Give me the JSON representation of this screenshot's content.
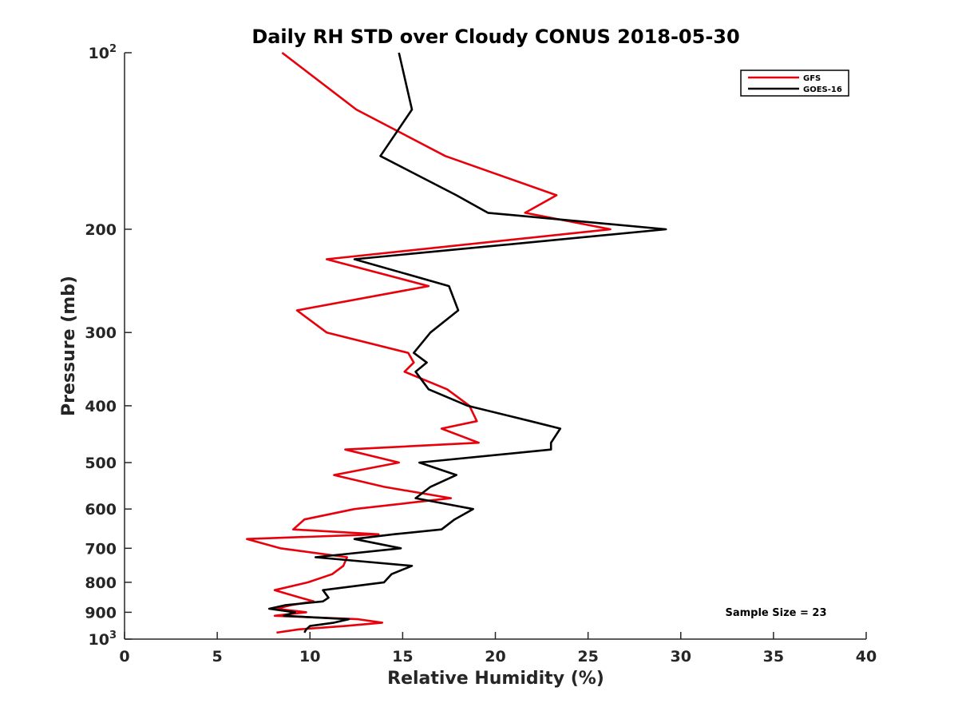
{
  "chart_data": {
    "type": "line",
    "title": "Daily RH STD over Cloudy CONUS 2018-05-30",
    "xlabel": "Relative Humidity (%)",
    "ylabel": "Pressure (mb)",
    "xlim": [
      0,
      40
    ],
    "ylim": [
      100,
      1000
    ],
    "yscale": "log",
    "y_reversed": true,
    "xticks": [
      0,
      5,
      10,
      15,
      20,
      25,
      30,
      35,
      40
    ],
    "xtick_labels": [
      "0",
      "5",
      "10",
      "15",
      "20",
      "25",
      "30",
      "35",
      "40"
    ],
    "yticks": [
      {
        "value": 100,
        "label": "10",
        "sup": "2"
      },
      {
        "value": 200,
        "label": "200",
        "sup": ""
      },
      {
        "value": 300,
        "label": "300",
        "sup": ""
      },
      {
        "value": 400,
        "label": "400",
        "sup": ""
      },
      {
        "value": 500,
        "label": "500",
        "sup": ""
      },
      {
        "value": 600,
        "label": "600",
        "sup": ""
      },
      {
        "value": 700,
        "label": "700",
        "sup": ""
      },
      {
        "value": 800,
        "label": "800",
        "sup": ""
      },
      {
        "value": 900,
        "label": "900",
        "sup": ""
      },
      {
        "value": 1000,
        "label": "10",
        "sup": "3"
      }
    ],
    "grid": false,
    "legend_position": "top-right",
    "annotation": "Sample Size = 23",
    "series": [
      {
        "name": "GFS",
        "color": "#e8000b",
        "points": [
          [
            8.5,
            100
          ],
          [
            12.5,
            125
          ],
          [
            17.3,
            150
          ],
          [
            23.3,
            175
          ],
          [
            21.6,
            187.5
          ],
          [
            26.2,
            200
          ],
          [
            10.9,
            225
          ],
          [
            16.4,
            250
          ],
          [
            9.3,
            275
          ],
          [
            10.9,
            300
          ],
          [
            15.3,
            325
          ],
          [
            15.6,
            337.5
          ],
          [
            15.1,
            350
          ],
          [
            17.4,
            375
          ],
          [
            18.6,
            400
          ],
          [
            19.0,
            425
          ],
          [
            17.1,
            437.5
          ],
          [
            19.1,
            462.5
          ],
          [
            11.9,
            475
          ],
          [
            14.8,
            500
          ],
          [
            11.3,
            525
          ],
          [
            14.0,
            550
          ],
          [
            17.6,
            575
          ],
          [
            12.4,
            600
          ],
          [
            9.7,
            625
          ],
          [
            9.1,
            650
          ],
          [
            13.7,
            662.5
          ],
          [
            6.6,
            675
          ],
          [
            8.4,
            700
          ],
          [
            12.0,
            725
          ],
          [
            11.8,
            750
          ],
          [
            11.2,
            775
          ],
          [
            9.9,
            800
          ],
          [
            8.1,
            825
          ],
          [
            9.5,
            850
          ],
          [
            10.2,
            862.5
          ],
          [
            9.0,
            875
          ],
          [
            8.2,
            887.5
          ],
          [
            9.8,
            900
          ],
          [
            8.1,
            912.5
          ],
          [
            12.6,
            925
          ],
          [
            13.9,
            937.5
          ],
          [
            11.9,
            950
          ],
          [
            9.4,
            962.5
          ],
          [
            8.2,
            975
          ]
        ]
      },
      {
        "name": "GOES-16",
        "color": "#000000",
        "points": [
          [
            14.8,
            100
          ],
          [
            15.5,
            125
          ],
          [
            13.8,
            150
          ],
          [
            17.9,
            175
          ],
          [
            19.6,
            187.5
          ],
          [
            29.2,
            200
          ],
          [
            12.4,
            225
          ],
          [
            17.5,
            250
          ],
          [
            18.0,
            275
          ],
          [
            16.5,
            300
          ],
          [
            15.6,
            325
          ],
          [
            16.3,
            337.5
          ],
          [
            15.7,
            350
          ],
          [
            16.4,
            375
          ],
          [
            18.5,
            400
          ],
          [
            21.9,
            425
          ],
          [
            23.5,
            437.5
          ],
          [
            23.0,
            462.5
          ],
          [
            23.0,
            475
          ],
          [
            15.9,
            500
          ],
          [
            17.9,
            525
          ],
          [
            16.5,
            550
          ],
          [
            15.7,
            575
          ],
          [
            18.8,
            600
          ],
          [
            17.8,
            625
          ],
          [
            17.1,
            650
          ],
          [
            14.5,
            662.5
          ],
          [
            12.4,
            675
          ],
          [
            14.9,
            700
          ],
          [
            10.3,
            725
          ],
          [
            15.5,
            750
          ],
          [
            14.4,
            775
          ],
          [
            14.0,
            800
          ],
          [
            10.7,
            825
          ],
          [
            11.0,
            850
          ],
          [
            10.7,
            862.5
          ],
          [
            8.7,
            875
          ],
          [
            7.8,
            887.5
          ],
          [
            9.2,
            900
          ],
          [
            8.6,
            912.5
          ],
          [
            12.1,
            925
          ],
          [
            11.3,
            937.5
          ],
          [
            10.0,
            950
          ],
          [
            9.8,
            962.5
          ],
          [
            9.7,
            975
          ]
        ]
      }
    ]
  }
}
